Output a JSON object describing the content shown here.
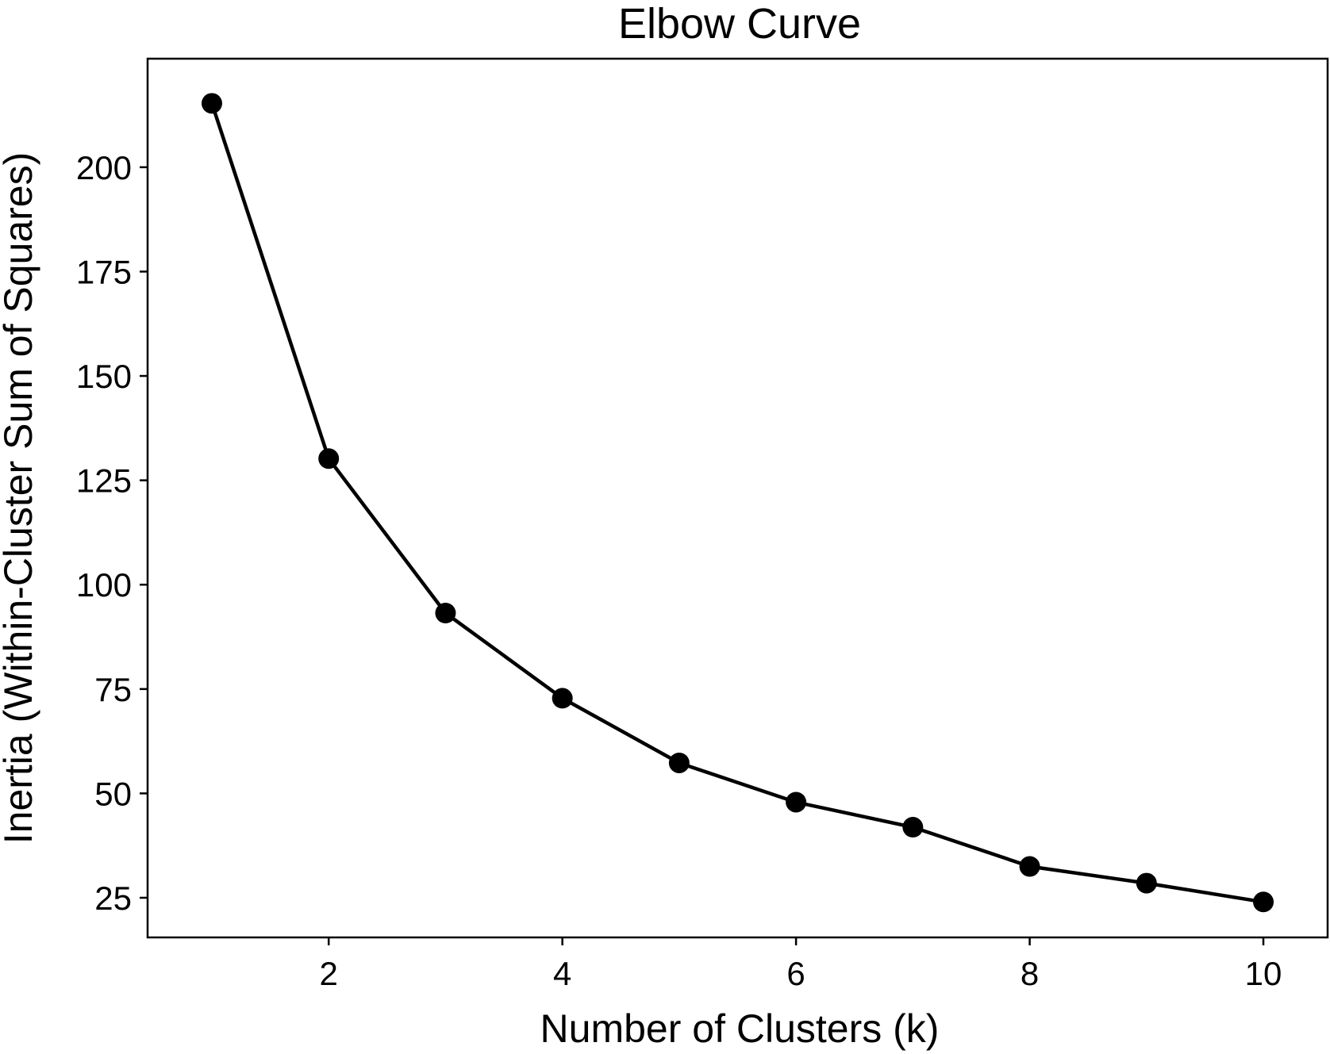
{
  "chart_data": {
    "type": "line",
    "title": "Elbow Curve",
    "xlabel": "Number of Clusters (k)",
    "ylabel": "Inertia (Within-Cluster Sum of Squares)",
    "xlim": [
      0.45,
      10.55
    ],
    "ylim": [
      15.5,
      226
    ],
    "xticks": [
      2,
      4,
      6,
      8,
      10
    ],
    "yticks": [
      25,
      50,
      75,
      100,
      125,
      150,
      175,
      200
    ],
    "grid": false,
    "series": [
      {
        "color": "#000000",
        "marker": "circle",
        "x": [
          1,
          2,
          3,
          4,
          5,
          6,
          7,
          8,
          9,
          10
        ],
        "y": [
          215.3,
          130.2,
          93.2,
          72.8,
          57.3,
          47.9,
          41.9,
          32.5,
          28.5,
          24.0
        ]
      }
    ]
  }
}
